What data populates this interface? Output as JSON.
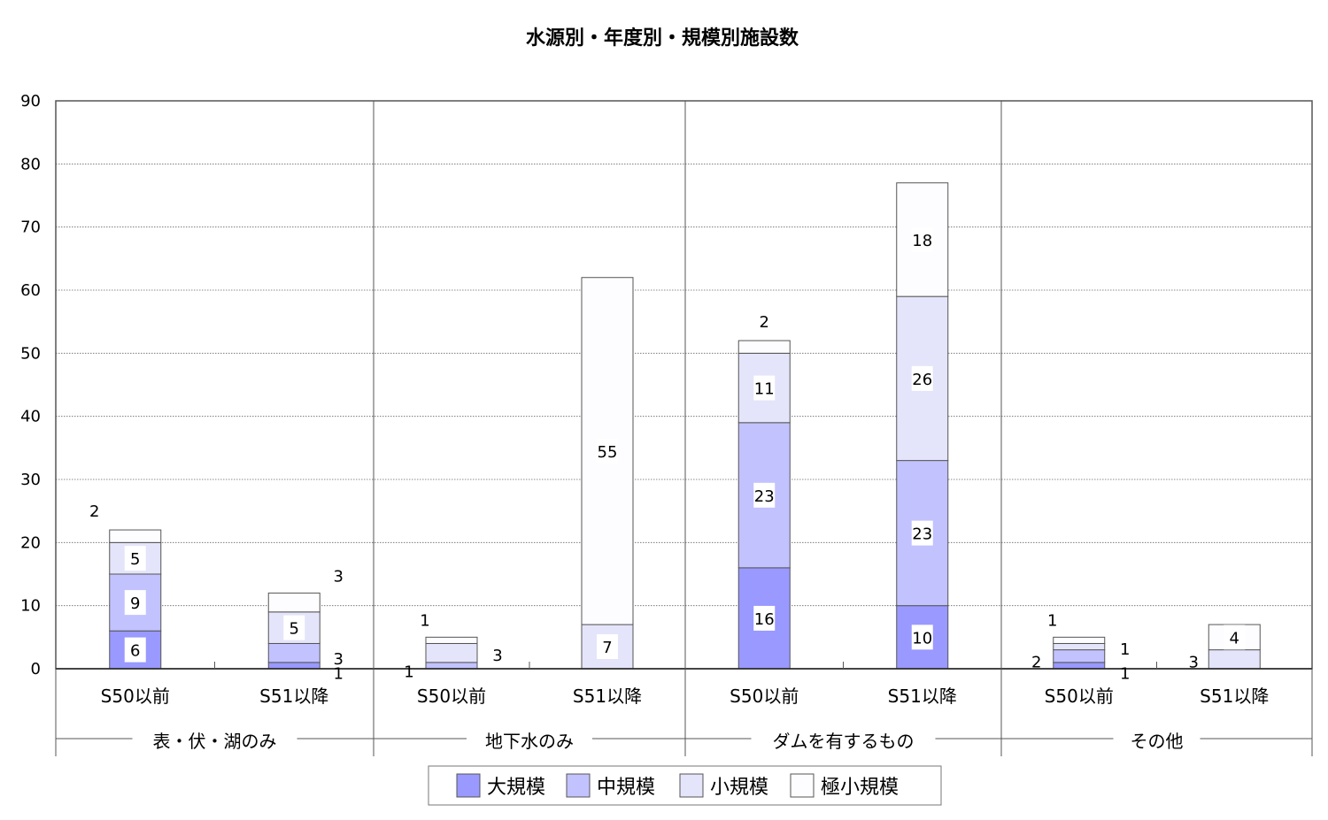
{
  "chart_data": {
    "type": "bar",
    "stacked": true,
    "title": "水源別・年度別・規模別施設数",
    "ylim": [
      0,
      90
    ],
    "yticks": [
      0,
      10,
      20,
      30,
      40,
      50,
      60,
      70,
      80,
      90
    ],
    "grid": true,
    "legend_position": "bottom",
    "groups": [
      "表・伏・湖のみ",
      "地下水のみ",
      "ダムを有するもの",
      "その他"
    ],
    "categories": [
      "S50以前",
      "S51以降",
      "S50以前",
      "S51以降",
      "S50以前",
      "S51以降",
      "S50以前",
      "S51以降"
    ],
    "series": [
      {
        "name": "大規模",
        "color": "#9999ff",
        "values": [
          6,
          1,
          0,
          0,
          16,
          10,
          1,
          0
        ]
      },
      {
        "name": "中規模",
        "color": "#c2c2ff",
        "values": [
          9,
          3,
          1,
          0,
          23,
          23,
          2,
          0
        ]
      },
      {
        "name": "小規模",
        "color": "#e4e4fa",
        "values": [
          5,
          5,
          3,
          7,
          11,
          26,
          1,
          3
        ]
      },
      {
        "name": "極小規模",
        "color": "#fdfdff",
        "values": [
          2,
          3,
          1,
          55,
          2,
          18,
          1,
          4
        ]
      }
    ]
  }
}
